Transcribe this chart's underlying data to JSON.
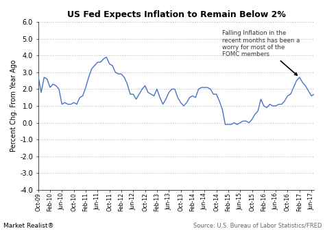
{
  "title": "US Fed Expects Inflation to Remain Below 2%",
  "ylabel": "Percent Chg. From Year Ago",
  "source_text": "Source: U.S. Bureau of Labor Statistics/FRED",
  "brand_text": "Market Realist®",
  "annotation_text": "Falling Inflation in the\nrecent months has been a\nworry for most of the\nFOMC members",
  "ylim": [
    -4.0,
    6.0
  ],
  "yticks": [
    -4.0,
    -3.0,
    -2.0,
    -1.0,
    0.0,
    1.0,
    2.0,
    3.0,
    4.0,
    5.0,
    6.0
  ],
  "line_color": "#4472c4",
  "bg_color": "#ffffff",
  "grid_color": "#aaaaaa",
  "values": [
    2.8,
    1.8,
    2.7,
    2.6,
    2.1,
    2.3,
    2.2,
    2.0,
    1.1,
    1.2,
    1.1,
    1.1,
    1.2,
    1.1,
    1.5,
    1.6,
    2.1,
    2.7,
    3.2,
    3.4,
    3.6,
    3.6,
    3.8,
    3.9,
    3.5,
    3.4,
    3.0,
    2.9,
    2.9,
    2.7,
    2.3,
    1.7,
    1.7,
    1.4,
    1.7,
    2.0,
    2.2,
    1.8,
    1.7,
    1.6,
    2.0,
    1.5,
    1.1,
    1.4,
    1.8,
    2.0,
    2.0,
    1.5,
    1.2,
    1.0,
    1.2,
    1.5,
    1.6,
    1.5,
    2.0,
    2.1,
    2.1,
    2.1,
    2.0,
    1.7,
    1.7,
    1.3,
    0.8,
    -0.1,
    -0.1,
    -0.1,
    0.0,
    -0.1,
    0.0,
    0.1,
    0.1,
    0.0,
    0.2,
    0.5,
    0.7,
    1.4,
    1.0,
    0.9,
    1.1,
    1.0,
    1.0,
    1.1,
    1.1,
    1.3,
    1.6,
    1.7,
    2.1,
    2.5,
    2.7,
    2.4,
    2.2,
    1.9,
    1.6,
    1.7
  ],
  "xtick_labels": [
    "Oct-09",
    "Feb-10",
    "Jun-10",
    "Oct-10",
    "Feb-11",
    "Jun-11",
    "Oct-11",
    "Feb-12",
    "Jun-12",
    "Oct-12",
    "Feb-13",
    "Jun-13",
    "Oct-13",
    "Feb-14",
    "Jun-14",
    "Oct-14",
    "Feb-15",
    "Jun-15",
    "Oct-15",
    "Feb-16",
    "Jun-16",
    "Oct-16",
    "Feb-17",
    "Jun-17"
  ],
  "xtick_positions": [
    0,
    4,
    8,
    12,
    16,
    20,
    24,
    28,
    32,
    36,
    40,
    44,
    48,
    52,
    56,
    60,
    64,
    68,
    72,
    76,
    80,
    84,
    88,
    92
  ]
}
